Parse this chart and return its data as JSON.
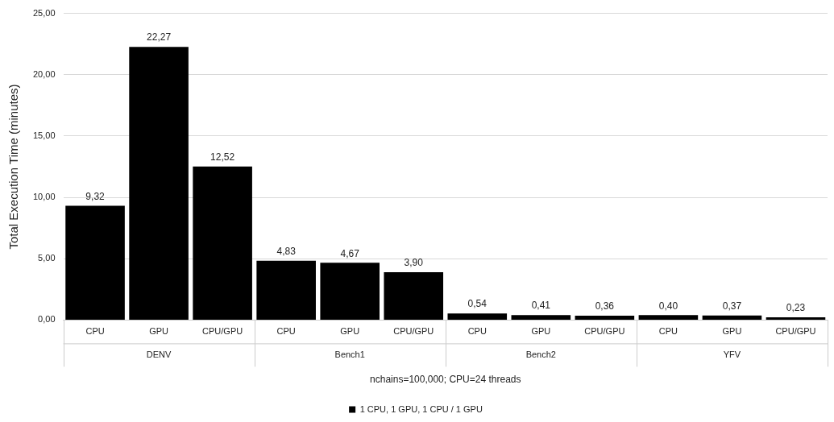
{
  "chart_data": {
    "type": "bar",
    "categories": [
      "CPU",
      "GPU",
      "CPU/GPU",
      "CPU",
      "GPU",
      "CPU/GPU",
      "CPU",
      "GPU",
      "CPU/GPU",
      "CPU",
      "GPU",
      "CPU/GPU"
    ],
    "series": [
      {
        "name": "1 CPU, 1 GPU, 1 CPU / 1 GPU",
        "color": "#000000",
        "values": [
          9.32,
          22.27,
          12.52,
          4.83,
          4.67,
          3.9,
          0.54,
          0.41,
          0.36,
          0.4,
          0.37,
          0.23
        ],
        "value_labels": [
          "9,32",
          "22,27",
          "12,52",
          "4,83",
          "4,67",
          "3,90",
          "0,54",
          "0,41",
          "0,36",
          "0,40",
          "0,37",
          "0,23"
        ]
      }
    ],
    "annotations": [
      "DENV",
      "Bench1",
      "Bench2",
      "YFV"
    ],
    "xlabel": "nchains=100,000; CPU=24 threads",
    "ylabel": "Total Execution Time (minutes)",
    "ylim": [
      0,
      25
    ],
    "yticks": [
      {
        "value": 0,
        "label": "0,00"
      },
      {
        "value": 5,
        "label": "5,00"
      },
      {
        "value": 10,
        "label": "10,00"
      },
      {
        "value": 15,
        "label": "15,00"
      },
      {
        "value": 20,
        "label": "20,00"
      },
      {
        "value": 25,
        "label": "25,00"
      }
    ],
    "grid": "y",
    "legend": "bottom"
  }
}
